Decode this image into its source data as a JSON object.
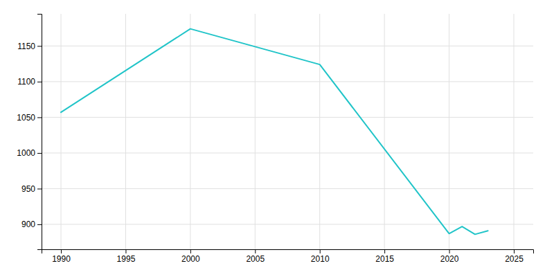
{
  "chart_data": {
    "type": "line",
    "x": [
      1990,
      2000,
      2010,
      2020,
      2021,
      2022,
      2023
    ],
    "values": [
      1057,
      1174,
      1124,
      887,
      897,
      886,
      891
    ],
    "color": "#20C4C8",
    "xlim": [
      1988.5,
      2026.5
    ],
    "ylim": [
      865,
      1195
    ],
    "xticks": [
      1990,
      1995,
      2000,
      2005,
      2010,
      2015,
      2020,
      2025
    ],
    "yticks": [
      900,
      950,
      1000,
      1050,
      1100,
      1150
    ],
    "grid": true
  }
}
